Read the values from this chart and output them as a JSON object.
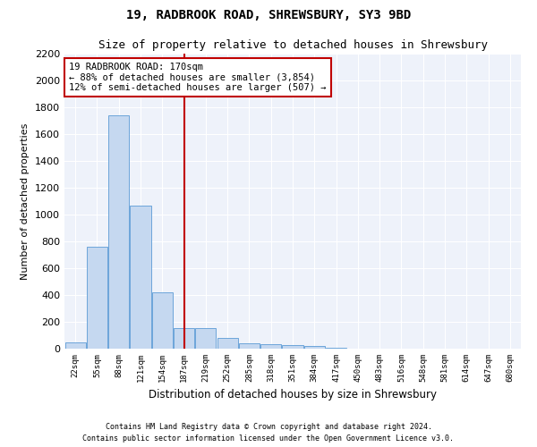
{
  "title": "19, RADBROOK ROAD, SHREWSBURY, SY3 9BD",
  "subtitle": "Size of property relative to detached houses in Shrewsbury",
  "xlabel": "Distribution of detached houses by size in Shrewsbury",
  "ylabel": "Number of detached properties",
  "bar_labels": [
    "22sqm",
    "55sqm",
    "88sqm",
    "121sqm",
    "154sqm",
    "187sqm",
    "219sqm",
    "252sqm",
    "285sqm",
    "318sqm",
    "351sqm",
    "384sqm",
    "417sqm",
    "450sqm",
    "483sqm",
    "516sqm",
    "548sqm",
    "581sqm",
    "614sqm",
    "647sqm",
    "680sqm"
  ],
  "bar_values": [
    50,
    760,
    1740,
    1070,
    420,
    155,
    155,
    80,
    40,
    35,
    25,
    20,
    10,
    0,
    0,
    0,
    0,
    0,
    0,
    0,
    0
  ],
  "bar_color": "#c5d8f0",
  "bar_edge_color": "#5b9bd5",
  "vline_x": 5,
  "vline_color": "#c00000",
  "annotation_line1": "19 RADBROOK ROAD: 170sqm",
  "annotation_line2": "← 88% of detached houses are smaller (3,854)",
  "annotation_line3": "12% of semi-detached houses are larger (507) →",
  "annotation_box_color": "white",
  "annotation_box_edge_color": "#c00000",
  "ylim": [
    0,
    2200
  ],
  "yticks": [
    0,
    200,
    400,
    600,
    800,
    1000,
    1200,
    1400,
    1600,
    1800,
    2000,
    2200
  ],
  "footer1": "Contains HM Land Registry data © Crown copyright and database right 2024.",
  "footer2": "Contains public sector information licensed under the Open Government Licence v3.0.",
  "bg_color": "#eef2fa",
  "fig_bg_color": "white",
  "title_fontsize": 10,
  "subtitle_fontsize": 9,
  "annotation_fontsize": 7.5,
  "footer_fontsize": 6
}
